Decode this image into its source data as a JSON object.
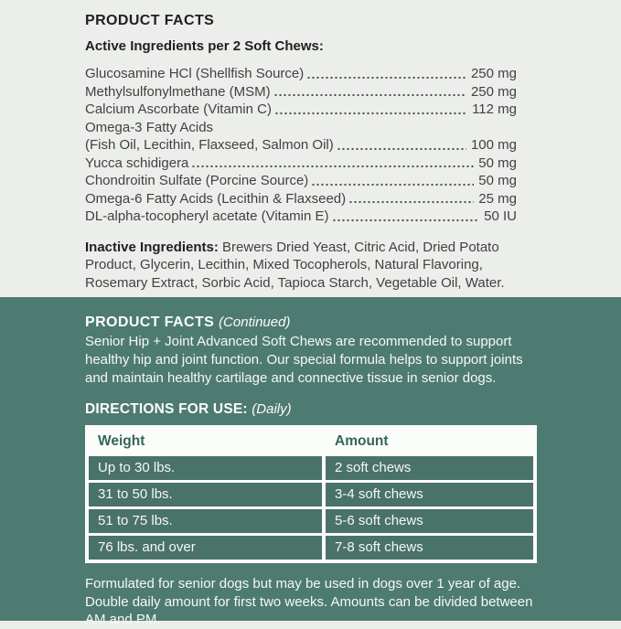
{
  "top": {
    "title": "PRODUCT FACTS",
    "subtitle": "Active Ingredients per 2 Soft Chews:",
    "ingredients": [
      {
        "name": "Glucosamine HCl (Shellfish Source)",
        "amount": "250 mg"
      },
      {
        "name": "Methylsulfonylmethane (MSM)",
        "amount": "250 mg"
      },
      {
        "name": "Calcium Ascorbate (Vitamin C)",
        "amount": "112 mg"
      },
      {
        "name": "Omega-3 Fatty Acids",
        "amount": ""
      },
      {
        "name": "(Fish Oil, Lecithin, Flaxseed, Salmon Oil)",
        "amount": "100 mg"
      },
      {
        "name": "Yucca schidigera",
        "amount": "50 mg"
      },
      {
        "name": "Chondroitin Sulfate (Porcine Source)",
        "amount": "50 mg"
      },
      {
        "name": "Omega-6 Fatty Acids (Lecithin & Flaxseed)",
        "amount": "25 mg"
      },
      {
        "name": "DL-alpha-tocopheryl acetate (Vitamin E)",
        "amount": "50 IU"
      }
    ],
    "inactive_label": "Inactive Ingredients:",
    "inactive_text": "Brewers Dried Yeast, Citric Acid, Dried Potato Product, Glycerin, Lecithin, Mixed Tocopherols, Natural Flavoring, Rosemary Extract, Sorbic Acid, Tapioca Starch, Vegetable Oil, Water."
  },
  "continued": {
    "title": "PRODUCT FACTS",
    "title_suffix": "(Continued)",
    "description": "Senior Hip + Joint Advanced Soft Chews are recommended to support healthy hip and joint function. Our special formula helps to support joints and maintain healthy cartilage and connective tissue in senior dogs."
  },
  "directions": {
    "title": "DIRECTIONS FOR USE:",
    "title_suffix": "(Daily)",
    "table": {
      "headers": [
        "Weight",
        "Amount"
      ],
      "rows": [
        {
          "weight": "Up to 30 lbs.",
          "amount": "2 soft chews"
        },
        {
          "weight": "31 to 50 lbs.",
          "amount": "3-4 soft chews"
        },
        {
          "weight": "51 to 75 lbs.",
          "amount": "5-6 soft chews"
        },
        {
          "weight": "76 lbs. and over",
          "amount": "7-8 soft chews"
        }
      ]
    },
    "note": "Formulated for senior dogs but may be used in dogs over 1 year of age. Double daily amount for first two weeks. Amounts can be divided between AM and PM."
  },
  "colors": {
    "green_bg": "#4e7b71",
    "row_green": "#497268",
    "table_header_text": "#35655a",
    "light_bg": "#eceeeb",
    "dark_text": "#414141",
    "white_text": "#f5f8f5"
  }
}
